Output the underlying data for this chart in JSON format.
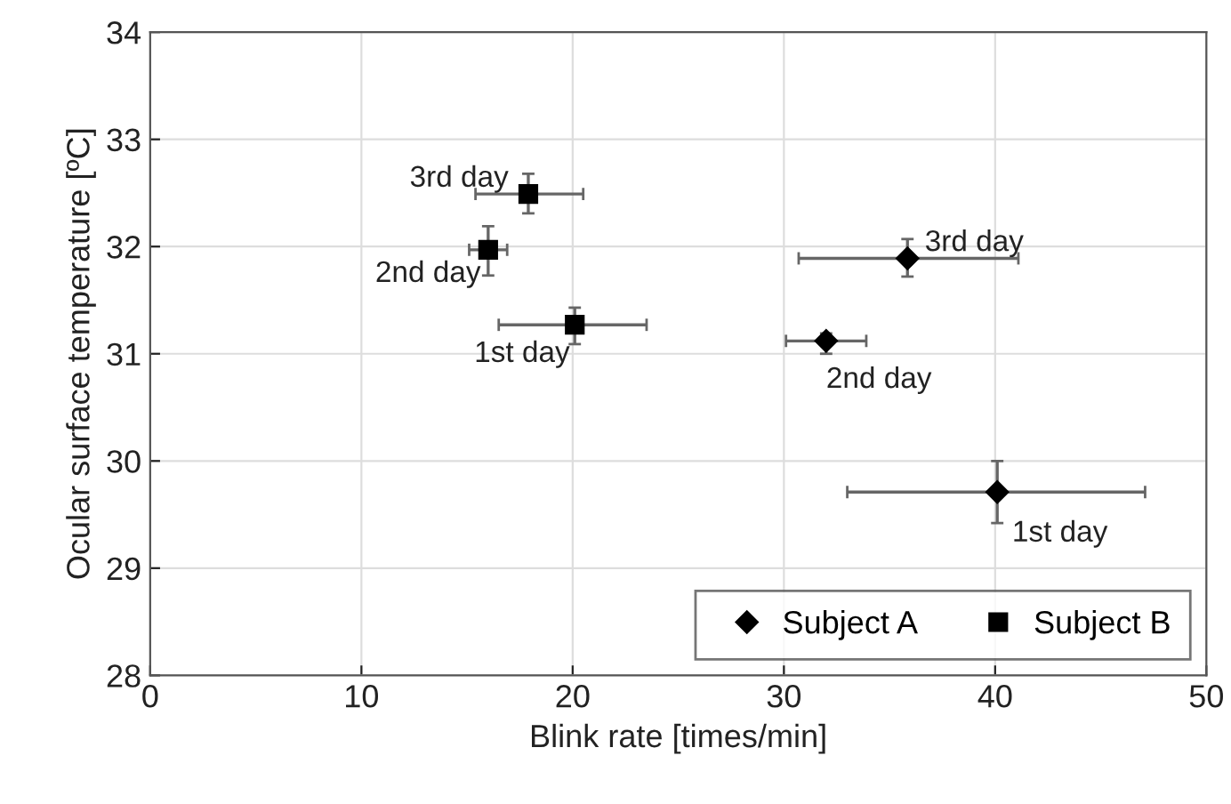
{
  "chart_data": {
    "type": "scatter",
    "xlabel": "Blink rate [times/min]",
    "ylabel": "Ocular surface temperature [ºC]",
    "xlim": [
      0,
      50
    ],
    "xticks": [
      0,
      10,
      20,
      30,
      40,
      50
    ],
    "ylim": [
      28,
      34
    ],
    "yticks": [
      28,
      29,
      30,
      31,
      32,
      33,
      34
    ],
    "grid": true,
    "legend": "bottom right",
    "series": [
      {
        "name": "Subject A",
        "color": "#000000",
        "marker": "diamond",
        "x": [
          40.1,
          32.0,
          35.85
        ],
        "values": [
          29.71,
          31.12,
          31.89
        ],
        "errors": [
          [
            29.42,
            30.0
          ],
          [
            31.0,
            31.19
          ],
          [
            31.72,
            32.07
          ]
        ],
        "xerrors": [
          [
            33.0,
            47.1
          ],
          [
            30.1,
            33.9
          ],
          [
            30.7,
            41.1
          ]
        ]
      },
      {
        "name": "Subject B",
        "color": "#000000",
        "marker": "square",
        "x": [
          20.1,
          16.0,
          17.9
        ],
        "values": [
          31.27,
          31.97,
          32.49
        ],
        "errors": [
          [
            31.09,
            31.43
          ],
          [
            31.73,
            32.19
          ],
          [
            32.31,
            32.68
          ]
        ],
        "xerrors": [
          [
            16.5,
            23.5
          ],
          [
            15.1,
            16.9
          ],
          [
            15.4,
            20.5
          ]
        ]
      }
    ],
    "annotations": [
      {
        "text": "1st day",
        "x": 40.1,
        "y": 29.71
      },
      {
        "text": "2nd day",
        "x": 32.0,
        "y": 31.12
      },
      {
        "text": "3rd day",
        "x": 35.85,
        "y": 31.89
      },
      {
        "text": "1st day",
        "x": 20.1,
        "y": 31.27
      },
      {
        "text": "2nd day",
        "x": 16.0,
        "y": 31.97
      },
      {
        "text": "3rd day",
        "x": 17.9,
        "y": 32.49
      }
    ]
  }
}
